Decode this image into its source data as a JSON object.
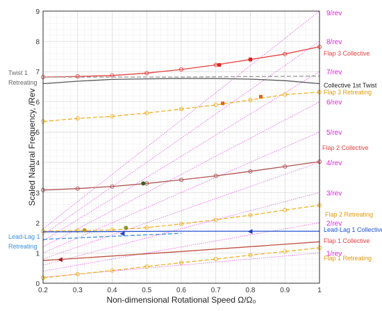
{
  "chart_data": {
    "type": "line",
    "xlabel": "Non-dimensional Rotational Speed Ω/Ω₀",
    "ylabel": "Scaled Natural Frequency, /Rev",
    "xlim": [
      0.2,
      1.0
    ],
    "ylim": [
      0,
      9
    ],
    "xticks": [
      "0.2",
      "0.3",
      "0.4",
      "0.5",
      "0.6",
      "0.7",
      "0.8",
      "0.9",
      "1"
    ],
    "yticks": [
      "0",
      "1",
      "2",
      "3",
      "4",
      "5",
      "6",
      "7",
      "8",
      "9"
    ],
    "grid": true,
    "per_rev_lines": {
      "labels": [
        "1/rev",
        "2/rev",
        "3/rev",
        "4/rev",
        "5/rev",
        "6/rev",
        "7/rev",
        "8/rev",
        "9/rev"
      ],
      "color": "#e020e0"
    },
    "series": [
      {
        "name": "Flap 3 Collective",
        "color": "#e8413f",
        "dash": "",
        "marker": "circle",
        "x": [
          0.2,
          0.3,
          0.4,
          0.5,
          0.6,
          0.7,
          0.8,
          0.9,
          1.0
        ],
        "y": [
          6.82,
          6.84,
          6.87,
          6.95,
          7.07,
          7.22,
          7.4,
          7.58,
          7.82
        ]
      },
      {
        "name": "Twist 1 Retreating",
        "color": "#9a9a9a",
        "dash": "6,3",
        "marker": "",
        "x": [
          0.2,
          0.6,
          1.0
        ],
        "y": [
          6.82,
          6.82,
          6.85
        ]
      },
      {
        "name": "Collective 1st Twist",
        "color": "#555555",
        "dash": "",
        "marker": "",
        "x": [
          0.2,
          0.3,
          0.4,
          0.5,
          0.6,
          0.7,
          0.8,
          0.9,
          1.0
        ],
        "y": [
          6.6,
          6.68,
          6.74,
          6.76,
          6.77,
          6.77,
          6.75,
          6.7,
          6.6
        ]
      },
      {
        "name": "Flap 3 Retreating",
        "color": "#f0b020",
        "dash": "6,3",
        "marker": "circle",
        "x": [
          0.2,
          0.3,
          0.4,
          0.5,
          0.6,
          0.7,
          0.8,
          0.9,
          1.0
        ],
        "y": [
          5.35,
          5.45,
          5.52,
          5.63,
          5.76,
          5.9,
          6.06,
          6.24,
          6.32
        ]
      },
      {
        "name": "Flap 2 Collective",
        "color": "#b05050",
        "dash": "",
        "marker": "circle",
        "x": [
          0.2,
          0.3,
          0.4,
          0.5,
          0.6,
          0.7,
          0.8,
          0.9,
          1.0
        ],
        "y": [
          3.08,
          3.13,
          3.2,
          3.3,
          3.42,
          3.55,
          3.7,
          3.86,
          4.02
        ]
      },
      {
        "name": "Flap 2 Retreating",
        "color": "#f0b020",
        "dash": "6,3",
        "marker": "circle",
        "x": [
          0.2,
          0.3,
          0.4,
          0.5,
          0.6,
          0.7,
          0.8,
          0.9,
          1.0
        ],
        "y": [
          1.72,
          1.74,
          1.76,
          1.84,
          1.96,
          2.1,
          2.25,
          2.42,
          2.58
        ]
      },
      {
        "name": "Lead-Lag 1 Collective",
        "color": "#2050d0",
        "dash": "",
        "marker": "",
        "x": [
          0.2,
          0.6,
          1.0
        ],
        "y": [
          1.7,
          1.72,
          1.72
        ]
      },
      {
        "name": "Lead-Lag 1 Retreating",
        "color": "#4090e0",
        "dash": "6,3",
        "marker": "",
        "x": [
          0.2,
          0.4,
          0.6
        ],
        "y": [
          1.45,
          1.55,
          1.65
        ]
      },
      {
        "name": "Flap 1 Collective",
        "color": "#c05040",
        "dash": "",
        "marker": "",
        "x": [
          0.2,
          0.6,
          1.0
        ],
        "y": [
          0.75,
          1.05,
          1.37
        ]
      },
      {
        "name": "Flap 1 Retreating",
        "color": "#f0b020",
        "dash": "6,3",
        "marker": "circle",
        "x": [
          0.2,
          0.3,
          0.4,
          0.5,
          0.6,
          0.7,
          0.8,
          0.9,
          1.0
        ],
        "y": [
          0.18,
          0.3,
          0.42,
          0.55,
          0.68,
          0.8,
          0.93,
          1.05,
          1.17
        ]
      }
    ],
    "point_markers": [
      {
        "x": 0.71,
        "y": 7.22,
        "color": "#e02020",
        "shape": "square"
      },
      {
        "x": 0.8,
        "y": 7.4,
        "color": "#e02020",
        "shape": "square"
      },
      {
        "x": 0.72,
        "y": 5.95,
        "color": "#e06010",
        "shape": "square"
      },
      {
        "x": 0.83,
        "y": 6.17,
        "color": "#e06010",
        "shape": "square"
      },
      {
        "x": 0.49,
        "y": 3.3,
        "color": "#406020",
        "shape": "dot"
      },
      {
        "x": 0.44,
        "y": 1.83,
        "color": "#8a9a20",
        "shape": "dot"
      },
      {
        "x": 0.32,
        "y": 1.75,
        "color": "#c09020",
        "shape": "dot"
      },
      {
        "x": 0.25,
        "y": 0.78,
        "color": "#a02020",
        "shape": "left-triangle"
      },
      {
        "x": 0.43,
        "y": 1.64,
        "color": "#2040c0",
        "shape": "left-triangle"
      },
      {
        "x": 0.8,
        "y": 1.71,
        "color": "#2040c0",
        "shape": "left-triangle"
      }
    ],
    "annotations": {
      "twist1_retreating": [
        "Twist 1",
        "Retreating"
      ],
      "lead_lag1_retreating": [
        "Lead-Lag 1",
        "Retreating"
      ],
      "collective_1st_twist": "Collective 1st Twist",
      "flap3_collective": "Flap 3 Collective",
      "flap3_retreating": "Flap 3 Retreating",
      "flap2_collective": "Flap 2 Collective",
      "flap2_retreating": "Flap 2 Retreating",
      "lead_lag1_collective": "Lead-Lag 1 Collective",
      "flap1_collective": "Flap 1 Collective",
      "flap1_retreating": "Flap 1 Retreating"
    }
  }
}
